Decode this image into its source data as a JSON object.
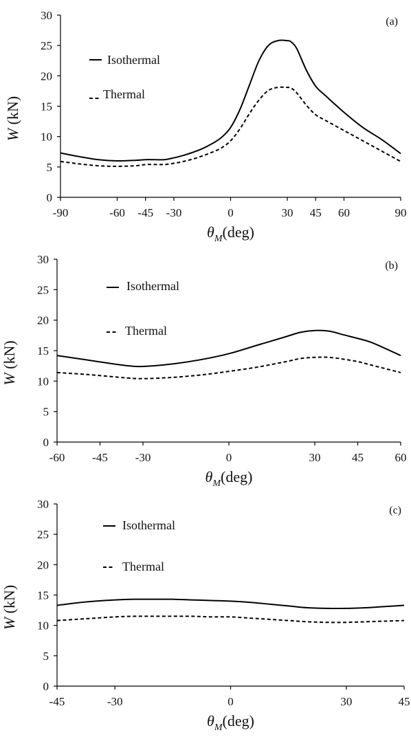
{
  "chart_data": [
    {
      "type": "line",
      "panel_label": "(a)",
      "xlabel": "θM(deg)",
      "xlabel_main": "θ",
      "xlabel_sub": "M",
      "xlabel_unit": "(deg)",
      "ylabel": "W (kN)",
      "ylabel_main": "W",
      "ylabel_unit": " (kN)",
      "xlim": [
        -90,
        90
      ],
      "ylim": [
        0,
        30
      ],
      "xticks": [
        -90,
        -60,
        -45,
        -30,
        0,
        30,
        45,
        60,
        90
      ],
      "yticks": [
        0,
        5,
        10,
        15,
        20,
        25,
        30
      ],
      "grid": false,
      "legend_position": "top-left",
      "series": [
        {
          "name": "Isothermal",
          "style": "solid",
          "x": [
            -90,
            -80,
            -70,
            -60,
            -50,
            -45,
            -40,
            -35,
            -30,
            -25,
            -20,
            -15,
            -10,
            -5,
            0,
            5,
            10,
            15,
            20,
            25,
            30,
            32,
            35,
            40,
            45,
            50,
            60,
            70,
            80,
            90
          ],
          "y": [
            7.3,
            6.7,
            6.2,
            6.0,
            6.1,
            6.2,
            6.2,
            6.2,
            6.5,
            6.9,
            7.4,
            8.0,
            8.8,
            9.8,
            11.5,
            14.5,
            18.5,
            22.5,
            25.0,
            25.8,
            25.8,
            25.6,
            24.5,
            21.0,
            18.3,
            16.8,
            14.0,
            11.5,
            9.5,
            7.2
          ]
        },
        {
          "name": "Thermal",
          "style": "dashed",
          "x": [
            -90,
            -80,
            -70,
            -60,
            -50,
            -45,
            -40,
            -35,
            -30,
            -25,
            -20,
            -15,
            -10,
            -5,
            0,
            5,
            10,
            15,
            20,
            25,
            30,
            32,
            35,
            40,
            45,
            50,
            60,
            70,
            80,
            90
          ],
          "y": [
            5.9,
            5.5,
            5.2,
            5.1,
            5.2,
            5.4,
            5.4,
            5.4,
            5.6,
            5.9,
            6.3,
            6.8,
            7.4,
            8.1,
            9.3,
            11.3,
            13.8,
            16.0,
            17.6,
            18.1,
            18.1,
            18.0,
            17.2,
            15.2,
            13.6,
            12.7,
            11.0,
            9.3,
            7.6,
            5.9
          ]
        }
      ]
    },
    {
      "type": "line",
      "panel_label": "(b)",
      "xlabel": "θM(deg)",
      "xlabel_main": "θ",
      "xlabel_sub": "M",
      "xlabel_unit": "(deg)",
      "ylabel": "W (kN)",
      "ylabel_main": "W",
      "ylabel_unit": " (kN)",
      "xlim": [
        -60,
        60
      ],
      "ylim": [
        0,
        30
      ],
      "xticks": [
        -60,
        -45,
        -30,
        0,
        30,
        45,
        60
      ],
      "yticks": [
        0,
        5,
        10,
        15,
        20,
        25,
        30
      ],
      "grid": false,
      "legend_position": "top-left",
      "series": [
        {
          "name": "Isothermal",
          "style": "solid",
          "x": [
            -60,
            -50,
            -40,
            -35,
            -30,
            -20,
            -10,
            0,
            10,
            20,
            25,
            30,
            35,
            40,
            45,
            50,
            60
          ],
          "y": [
            14.2,
            13.5,
            12.8,
            12.5,
            12.4,
            12.8,
            13.5,
            14.5,
            15.9,
            17.3,
            18.0,
            18.3,
            18.2,
            17.6,
            17.0,
            16.3,
            14.2
          ],
          "style_note": ""
        },
        {
          "name": "Thermal",
          "style": "dashed",
          "x": [
            -60,
            -50,
            -40,
            -35,
            -30,
            -20,
            -10,
            0,
            10,
            20,
            25,
            30,
            35,
            40,
            45,
            50,
            60
          ],
          "y": [
            11.4,
            11.1,
            10.7,
            10.5,
            10.4,
            10.6,
            11.0,
            11.6,
            12.3,
            13.2,
            13.7,
            13.9,
            13.9,
            13.6,
            13.2,
            12.6,
            11.4
          ]
        }
      ]
    },
    {
      "type": "line",
      "panel_label": "(c)",
      "xlabel": "θM(deg)",
      "xlabel_main": "θ",
      "xlabel_sub": "M",
      "xlabel_unit": "(deg)",
      "ylabel": "W (kN)",
      "ylabel_main": "W",
      "ylabel_unit": " (kN)",
      "xlim": [
        -45,
        45
      ],
      "ylim": [
        0,
        30
      ],
      "xticks": [
        -45,
        -30,
        0,
        30,
        45
      ],
      "yticks": [
        0,
        5,
        10,
        15,
        20,
        25,
        30
      ],
      "grid": false,
      "legend_position": "top-left",
      "series": [
        {
          "name": "Isothermal",
          "style": "solid",
          "x": [
            -45,
            -40,
            -35,
            -30,
            -25,
            -20,
            -15,
            -10,
            -5,
            0,
            5,
            10,
            15,
            20,
            25,
            30,
            35,
            40,
            45
          ],
          "y": [
            13.3,
            13.7,
            14.0,
            14.2,
            14.3,
            14.3,
            14.3,
            14.2,
            14.1,
            14.0,
            13.8,
            13.5,
            13.2,
            12.9,
            12.8,
            12.8,
            12.9,
            13.1,
            13.3
          ]
        },
        {
          "name": "Thermal",
          "style": "dashed",
          "x": [
            -45,
            -40,
            -35,
            -30,
            -25,
            -20,
            -15,
            -10,
            -5,
            0,
            5,
            10,
            15,
            20,
            25,
            30,
            35,
            40,
            45
          ],
          "y": [
            10.8,
            11.0,
            11.2,
            11.4,
            11.5,
            11.5,
            11.5,
            11.5,
            11.4,
            11.4,
            11.2,
            11.0,
            10.8,
            10.6,
            10.5,
            10.5,
            10.6,
            10.7,
            10.8
          ]
        }
      ]
    }
  ]
}
